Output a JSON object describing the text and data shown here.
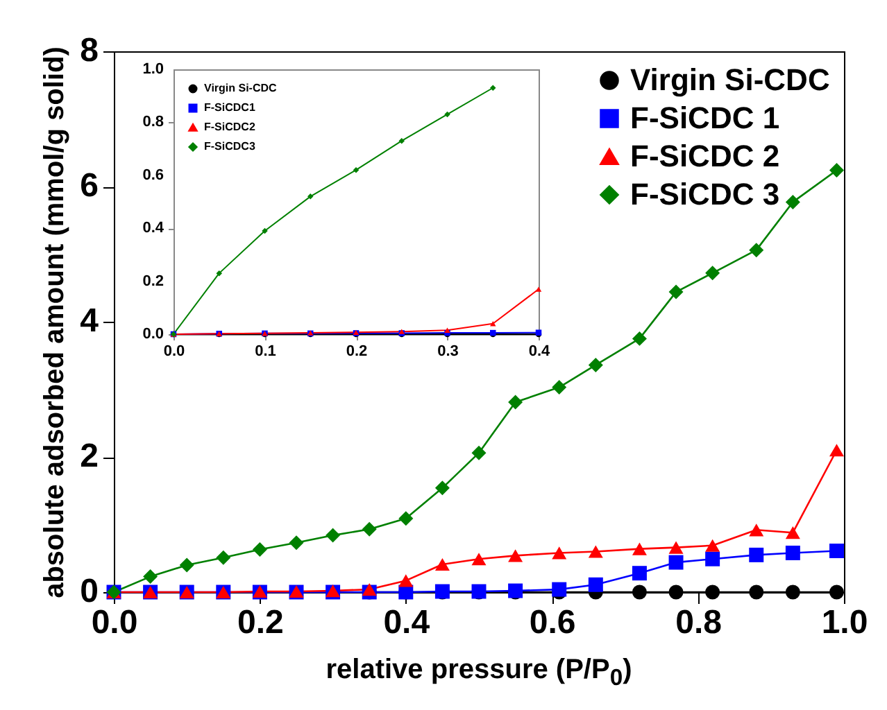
{
  "chart_data": [
    {
      "type": "line",
      "xlabel": "relative pressure (P/P$_{0}$)",
      "ylabel": "absolute adsorbed amount (mmol/g solid)",
      "x": [
        0,
        0.05,
        0.1,
        0.15,
        0.2,
        0.25,
        0.3,
        0.35,
        0.4,
        0.45,
        0.5,
        0.55,
        0.61,
        0.66,
        0.72,
        0.77,
        0.82,
        0.88,
        0.93,
        0.99
      ],
      "xlim": [
        0,
        1
      ],
      "xticks": [
        {
          "value": 0,
          "label": "0.0"
        },
        {
          "value": 0.2,
          "label": "0.2"
        },
        {
          "value": 0.4,
          "label": "0.4"
        },
        {
          "value": 0.6,
          "label": "0.6"
        },
        {
          "value": 0.8,
          "label": "0.8"
        },
        {
          "value": 1,
          "label": "1.0"
        }
      ],
      "ylim": [
        0,
        8
      ],
      "yticks": [
        0,
        2,
        4,
        6,
        8
      ],
      "legend": "top right",
      "grid": false,
      "series": [
        {
          "name": "Virgin Si-CDC",
          "color": "#000000",
          "marker": "circle",
          "values": [
            null,
            null,
            null,
            null,
            null,
            null,
            null,
            0,
            0,
            0,
            0,
            0,
            0,
            0,
            0,
            0,
            0,
            0,
            0,
            0
          ]
        },
        {
          "name": "F-SiCDC 1",
          "color": "#0000ff",
          "marker": "square",
          "values": [
            0,
            0,
            0,
            0,
            0,
            0,
            0,
            0,
            0,
            0.01,
            0.01,
            0.02,
            0.04,
            0.11,
            0.28,
            0.44,
            0.49,
            0.55,
            0.58,
            0.61
          ]
        },
        {
          "name": "F-SiCDC 2",
          "color": "#ff0000",
          "marker": "triangle",
          "values": [
            0,
            0,
            0,
            0,
            0.01,
            0.01,
            0.02,
            0.04,
            0.17,
            0.41,
            0.49,
            0.54,
            0.58,
            0.6,
            0.64,
            0.66,
            0.69,
            0.92,
            0.88,
            2.1
          ]
        },
        {
          "name": "F-SiCDC 3",
          "color": "#008000",
          "marker": "diamond",
          "values": [
            0,
            0.23,
            0.4,
            0.51,
            0.63,
            0.73,
            0.84,
            0.93,
            1.09,
            1.54,
            2.06,
            2.81,
            3.03,
            3.36,
            3.75,
            4.44,
            4.72,
            5.06,
            5.77,
            6.24
          ]
        }
      ]
    },
    {
      "type": "line",
      "x": [
        0,
        0.05,
        0.1,
        0.15,
        0.2,
        0.25,
        0.3,
        0.35,
        0.4
      ],
      "xlim": [
        0,
        0.4
      ],
      "xticks": [
        {
          "value": 0,
          "label": "0.0"
        },
        0.1,
        0.2,
        0.3,
        0.4
      ],
      "ylim": [
        0,
        1
      ],
      "yticks": [
        {
          "value": 0,
          "label": "0.0"
        },
        0.2,
        0.4,
        0.6,
        0.8,
        {
          "value": 1,
          "label": "1.0"
        }
      ],
      "legend": "top left",
      "grid": false,
      "series": [
        {
          "name": "Virgin Si-CDC",
          "color": "#000000",
          "marker": "circle",
          "values": [
            0,
            0,
            0,
            0,
            0,
            0,
            0,
            0,
            0
          ]
        },
        {
          "name": "F-SiCDC1",
          "color": "#0000ff",
          "marker": "square",
          "values": [
            0,
            0.002,
            0.003,
            0.003,
            0.004,
            0.004,
            0.005,
            0.005,
            0.006
          ]
        },
        {
          "name": "F-SiCDC2",
          "color": "#ff0000",
          "marker": "triangle",
          "values": [
            0,
            0.002,
            0.003,
            0.005,
            0.007,
            0.01,
            0.015,
            0.04,
            0.17
          ]
        },
        {
          "name": "F-SiCDC3",
          "color": "#008000",
          "marker": "diamond",
          "values": [
            0,
            0.23,
            0.39,
            0.52,
            0.62,
            0.73,
            0.83,
            0.93,
            null
          ]
        }
      ]
    }
  ]
}
